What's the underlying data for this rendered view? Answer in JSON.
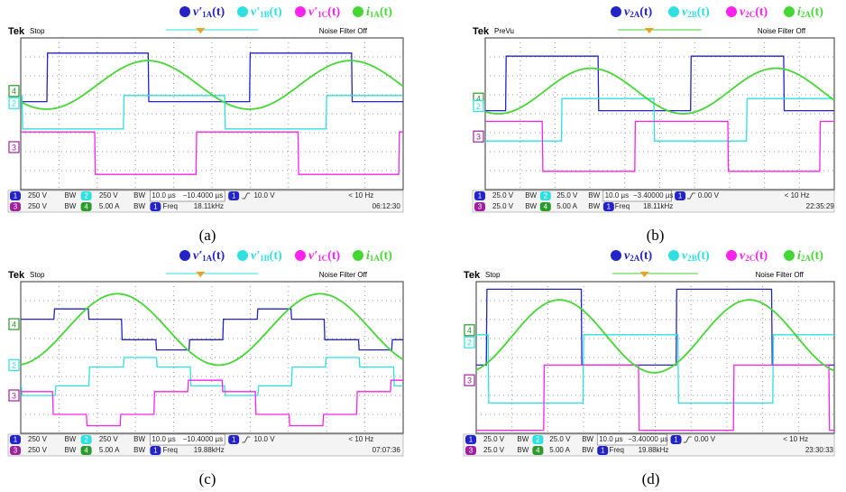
{
  "channels": [
    "1",
    "2",
    "3",
    "4"
  ],
  "panels": [
    {
      "label": "(a)",
      "scope": "Tek",
      "mode": "Stop",
      "filter": "Noise Filter Off",
      "legend": [
        {
          "sym": "v′",
          "sub": "1A",
          "arg": "(t)",
          "color": "#2323c8"
        },
        {
          "sym": "v′",
          "sub": "1B",
          "arg": "(t)",
          "color": "#2ee0e0"
        },
        {
          "sym": "v′",
          "sub": "1C",
          "arg": "(t)",
          "color": "#ff22ee"
        },
        {
          "sym": "i",
          "sub": "1A",
          "arg": "(t)",
          "color": "#44d633"
        }
      ],
      "status": {
        "ch1": "250 V",
        "ch2": "250 V",
        "ch3": "250 V",
        "ch4": "5.00 A",
        "bw": "BW",
        "timebase": "10.0 µs",
        "delay": "−10.4000 µs",
        "trig": "10.0 V",
        "trig_freq": "< 10 Hz",
        "freq_label": "Freq",
        "freq": "18.11kHz",
        "clock": "06:12:30"
      }
    },
    {
      "label": "(b)",
      "scope": "Tek",
      "mode": "PreVu",
      "filter": "Noise Filter Off",
      "legend": [
        {
          "sym": "v",
          "sub": "2A",
          "arg": "(t)",
          "color": "#2323c8"
        },
        {
          "sym": "v",
          "sub": "2B",
          "arg": "(t)",
          "color": "#2ee0e0"
        },
        {
          "sym": "v",
          "sub": "2C",
          "arg": "(t)",
          "color": "#ff22ee"
        },
        {
          "sym": "i",
          "sub": "2A",
          "arg": "(t)",
          "color": "#44d633"
        }
      ],
      "status": {
        "ch1": "25.0 V",
        "ch2": "25.0 V",
        "ch3": "25.0 V",
        "ch4": "5.00 A",
        "bw": "BW",
        "timebase": "10.0 µs",
        "delay": "−3.40000 µs",
        "trig": "0.00 V",
        "trig_freq": "< 10 Hz",
        "freq_label": "Freq",
        "freq": "18.11kHz",
        "clock": "22:35:29"
      }
    },
    {
      "label": "(c)",
      "scope": "Tek",
      "mode": "Stop",
      "filter": "Noise Filter Off",
      "legend": [
        {
          "sym": "v′",
          "sub": "1A",
          "arg": "(t)",
          "color": "#2323c8"
        },
        {
          "sym": "v′",
          "sub": "1B",
          "arg": "(t)",
          "color": "#2ee0e0"
        },
        {
          "sym": "v′",
          "sub": "1C",
          "arg": "(t)",
          "color": "#ff22ee"
        },
        {
          "sym": "i",
          "sub": "1A",
          "arg": "(t)",
          "color": "#44d633"
        }
      ],
      "status": {
        "ch1": "250 V",
        "ch2": "250 V",
        "ch3": "250 V",
        "ch4": "5.00 A",
        "bw": "BW",
        "timebase": "10.0 µs",
        "delay": "−10.4000 µs",
        "trig": "10.0 V",
        "trig_freq": "< 10 Hz",
        "freq_label": "Freq",
        "freq": "19.88kHz",
        "clock": "07:07:36"
      }
    },
    {
      "label": "(d)",
      "scope": "Tek",
      "mode": "Stop",
      "filter": "Noise Filter Off",
      "legend": [
        {
          "sym": "v",
          "sub": "2A",
          "arg": "(t)",
          "color": "#2323c8"
        },
        {
          "sym": "v",
          "sub": "2B",
          "arg": "(t)",
          "color": "#2ee0e0"
        },
        {
          "sym": "v",
          "sub": "2C",
          "arg": "(t)",
          "color": "#ff22ee"
        },
        {
          "sym": "i",
          "sub": "2A",
          "arg": "(t)",
          "color": "#44d633"
        }
      ],
      "status": {
        "ch1": "25.0 V",
        "ch2": "25.0 V",
        "ch3": "25.0 V",
        "ch4": "5.00 A",
        "bw": "BW",
        "timebase": "10.0 µs",
        "delay": "−3.40000 µs",
        "trig": "0.00 V",
        "trig_freq": "< 10 Hz",
        "freq_label": "Freq",
        "freq": "19.88kHz",
        "clock": "23:30:33"
      }
    }
  ]
}
